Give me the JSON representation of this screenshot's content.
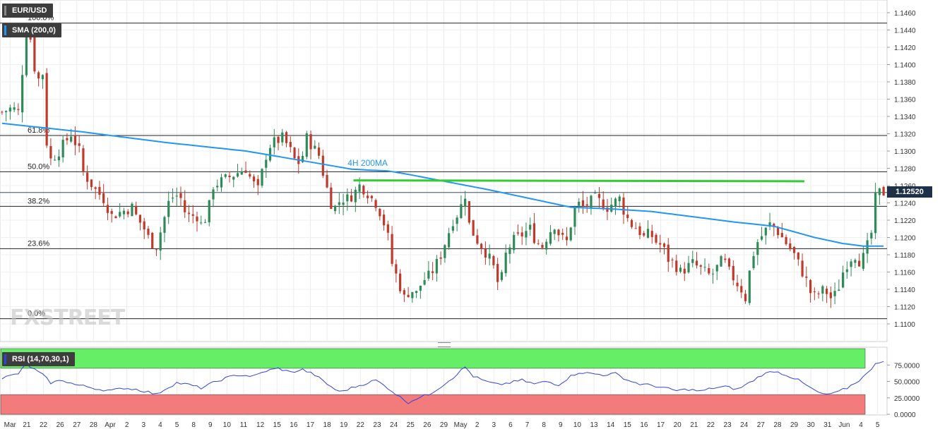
{
  "header": {
    "symbol": "EUR/USD",
    "sma_label": "SMA (200,0)",
    "rsi_label": "RSI (14,70,30,1)",
    "last_price": "1.12520",
    "logo": "FXSTREET"
  },
  "colors": {
    "up_candle": "#2e8b57",
    "down_candle": "#c0392b",
    "sma_line": "#2196f3",
    "resistance_line": "#33cc33",
    "rsi_line": "#3344dd",
    "rsi_overbought": "#66ee66",
    "rsi_oversold": "#f47b7b",
    "price_tag_bg": "#1f3148"
  },
  "chart_data": [
    {
      "type": "candlestick",
      "timeframe": "4H",
      "x_ticks": [
        "Mar",
        "21",
        "22",
        "26",
        "27",
        "28",
        "Apr",
        "2",
        "3",
        "4",
        "5",
        "8",
        "9",
        "10",
        "11",
        "12",
        "15",
        "16",
        "17",
        "18",
        "19",
        "22",
        "23",
        "24",
        "25",
        "26",
        "29",
        "May",
        "2",
        "3",
        "6",
        "7",
        "8",
        "9",
        "10",
        "13",
        "14",
        "15",
        "16",
        "17",
        "20",
        "21",
        "22",
        "23",
        "24",
        "27",
        "28",
        "29",
        "30",
        "31",
        "Jun",
        "4",
        "5"
      ],
      "y_ticks": [
        "1.1460",
        "1.1440",
        "1.1420",
        "1.1400",
        "1.1380",
        "1.1360",
        "1.1340",
        "1.1320",
        "1.1300",
        "1.1280",
        "1.1260",
        "1.1240",
        "1.1220",
        "1.1200",
        "1.1180",
        "1.1160",
        "1.1140",
        "1.1120",
        "1.1100"
      ],
      "ylim": [
        1.109,
        1.147
      ],
      "last_price": 1.1252,
      "fibonacci_levels": [
        {
          "label": "100.0%",
          "value": 1.1448
        },
        {
          "label": "61.8%",
          "value": 1.1318
        },
        {
          "label": "50.0%",
          "value": 1.1276
        },
        {
          "label": "38.2%",
          "value": 1.1236
        },
        {
          "label": "23.6%",
          "value": 1.1187
        },
        {
          "label": "0.0%",
          "value": 1.1106
        }
      ],
      "annotations": [
        {
          "text": "4H 200MA"
        }
      ],
      "resistance_line": {
        "start_x": 86.5,
        "end_x": 197.5,
        "start_y": 1.1266,
        "end_y": 1.1265
      },
      "close_path": [
        [
          0,
          1.1345
        ],
        [
          2.5,
          1.135
        ],
        [
          4,
          1.1345
        ],
        [
          6,
          1.144
        ],
        [
          7,
          1.143
        ],
        [
          8.5,
          1.138
        ],
        [
          10,
          1.139
        ],
        [
          11,
          1.131
        ],
        [
          12,
          1.129
        ],
        [
          14,
          1.13
        ],
        [
          15.5,
          1.131
        ],
        [
          17,
          1.132
        ],
        [
          19,
          1.13
        ],
        [
          20,
          1.1275
        ],
        [
          21.5,
          1.1265
        ],
        [
          23,
          1.1255
        ],
        [
          25,
          1.1245
        ],
        [
          27,
          1.1225
        ],
        [
          29.5,
          1.123
        ],
        [
          32,
          1.1235
        ],
        [
          33,
          1.1225
        ],
        [
          35,
          1.121
        ],
        [
          36.5,
          1.1195
        ],
        [
          38,
          1.119
        ],
        [
          39.5,
          1.1215
        ],
        [
          41,
          1.124
        ],
        [
          42.5,
          1.125
        ],
        [
          44,
          1.1245
        ],
        [
          45,
          1.123
        ],
        [
          46,
          1.1225
        ],
        [
          48,
          1.1225
        ],
        [
          49,
          1.1215
        ],
        [
          50.5,
          1.1225
        ],
        [
          52,
          1.126
        ],
        [
          54,
          1.1265
        ],
        [
          56,
          1.127
        ],
        [
          58,
          1.1275
        ],
        [
          60,
          1.128
        ],
        [
          61.5,
          1.1265
        ],
        [
          63,
          1.1255
        ],
        [
          64.5,
          1.1285
        ],
        [
          65.5,
          1.1305
        ],
        [
          67,
          1.131
        ],
        [
          69,
          1.1315
        ],
        [
          70.5,
          1.1305
        ],
        [
          72,
          1.129
        ],
        [
          73.5,
          1.1285
        ],
        [
          75,
          1.1315
        ],
        [
          76.5,
          1.1305
        ],
        [
          78,
          1.1295
        ],
        [
          79.5,
          1.1265
        ],
        [
          81,
          1.124
        ],
        [
          82,
          1.1235
        ],
        [
          83.5,
          1.1245
        ],
        [
          85,
          1.1245
        ],
        [
          86.5,
          1.125
        ],
        [
          88,
          1.126
        ],
        [
          89.5,
          1.1255
        ],
        [
          91,
          1.1245
        ],
        [
          92,
          1.124
        ],
        [
          93.5,
          1.1225
        ],
        [
          95,
          1.12
        ],
        [
          96,
          1.117
        ],
        [
          97.5,
          1.115
        ],
        [
          99,
          1.113
        ],
        [
          100.5,
          1.114
        ],
        [
          102,
          1.1135
        ],
        [
          103.5,
          1.115
        ],
        [
          105,
          1.1155
        ],
        [
          106.5,
          1.1165
        ],
        [
          108,
          1.118
        ],
        [
          109.5,
          1.12
        ],
        [
          111,
          1.122
        ],
        [
          112.5,
          1.123
        ],
        [
          114,
          1.125
        ],
        [
          115,
          1.1215
        ],
        [
          116.5,
          1.12
        ],
        [
          118,
          1.119
        ],
        [
          119.5,
          1.118
        ],
        [
          121,
          1.1165
        ],
        [
          122.5,
          1.114
        ],
        [
          124,
          1.118
        ],
        [
          125.5,
          1.1195
        ],
        [
          127,
          1.12
        ],
        [
          128.5,
          1.1205
        ],
        [
          130,
          1.121
        ],
        [
          131.5,
          1.1195
        ],
        [
          133,
          1.119
        ],
        [
          134.5,
          1.1205
        ],
        [
          136,
          1.1215
        ],
        [
          137.5,
          1.12
        ],
        [
          139,
          1.1195
        ],
        [
          140.5,
          1.1225
        ],
        [
          141.5,
          1.124
        ],
        [
          143,
          1.1235
        ],
        [
          144.5,
          1.124
        ],
        [
          146,
          1.1245
        ],
        [
          147.5,
          1.124
        ],
        [
          149,
          1.1235
        ],
        [
          150.5,
          1.124
        ],
        [
          152,
          1.1245
        ],
        [
          153.5,
          1.1225
        ],
        [
          155,
          1.1215
        ],
        [
          156.5,
          1.121
        ],
        [
          158,
          1.12
        ],
        [
          159.5,
          1.1205
        ],
        [
          161,
          1.1195
        ],
        [
          162.5,
          1.119
        ],
        [
          164,
          1.1175
        ],
        [
          165.5,
          1.117
        ],
        [
          167,
          1.116
        ],
        [
          168.5,
          1.1165
        ],
        [
          170,
          1.117
        ],
        [
          171.5,
          1.1165
        ],
        [
          173,
          1.116
        ],
        [
          174.5,
          1.1155
        ],
        [
          176,
          1.1165
        ],
        [
          177.5,
          1.1175
        ],
        [
          179,
          1.116
        ],
        [
          180.5,
          1.115
        ],
        [
          182,
          1.114
        ],
        [
          183,
          1.113
        ],
        [
          184.5,
          1.1175
        ],
        [
          186,
          1.1195
        ],
        [
          187.5,
          1.1205
        ],
        [
          189,
          1.1215
        ],
        [
          190.5,
          1.121
        ],
        [
          192,
          1.12
        ],
        [
          193.5,
          1.119
        ],
        [
          195,
          1.118
        ],
        [
          196.5,
          1.1165
        ],
        [
          198,
          1.115
        ],
        [
          199.5,
          1.113
        ],
        [
          201,
          1.1135
        ],
        [
          202.5,
          1.114
        ],
        [
          204,
          1.113
        ],
        [
          205.5,
          1.1135
        ],
        [
          207,
          1.116
        ],
        [
          208.5,
          1.1175
        ],
        [
          210,
          1.118
        ],
        [
          211.5,
          1.117
        ],
        [
          213,
          1.119
        ],
        [
          214,
          1.1205
        ],
        [
          215,
          1.1245
        ],
        [
          216,
          1.1252
        ]
      ],
      "sma_200": [
        [
          0,
          1.1332
        ],
        [
          20,
          1.1322
        ],
        [
          40,
          1.131
        ],
        [
          60,
          1.13
        ],
        [
          75,
          1.1288
        ],
        [
          86,
          1.1279
        ],
        [
          90,
          1.1278
        ],
        [
          95,
          1.1277
        ],
        [
          100,
          1.1273
        ],
        [
          110,
          1.1264
        ],
        [
          120,
          1.1255
        ],
        [
          130,
          1.1245
        ],
        [
          140,
          1.1235
        ],
        [
          150,
          1.1233
        ],
        [
          160,
          1.123
        ],
        [
          170,
          1.1224
        ],
        [
          180,
          1.1218
        ],
        [
          190,
          1.1213
        ],
        [
          200,
          1.12
        ],
        [
          207,
          1.1193
        ],
        [
          212,
          1.119
        ],
        [
          216,
          1.119
        ]
      ]
    },
    {
      "type": "line",
      "name": "RSI (14,70,30,1)",
      "y_ticks": [
        "75.0000",
        "50.0000",
        "25.0000",
        "0.0000"
      ],
      "ylim": [
        0,
        100
      ],
      "overbought": 70,
      "oversold": 30,
      "values": [
        [
          0,
          55
        ],
        [
          4,
          62
        ],
        [
          6,
          76
        ],
        [
          8,
          68
        ],
        [
          10,
          60
        ],
        [
          12,
          48
        ],
        [
          15,
          52
        ],
        [
          18,
          45
        ],
        [
          21,
          42
        ],
        [
          24,
          38
        ],
        [
          27,
          36
        ],
        [
          30,
          40
        ],
        [
          33,
          38
        ],
        [
          36,
          34
        ],
        [
          38,
          30
        ],
        [
          40,
          38
        ],
        [
          43,
          48
        ],
        [
          46,
          45
        ],
        [
          49,
          40
        ],
        [
          52,
          48
        ],
        [
          55,
          55
        ],
        [
          58,
          60
        ],
        [
          62,
          58
        ],
        [
          65,
          66
        ],
        [
          68,
          70
        ],
        [
          71,
          64
        ],
        [
          74,
          68
        ],
        [
          77,
          60
        ],
        [
          80,
          46
        ],
        [
          83,
          34
        ],
        [
          86,
          40
        ],
        [
          89,
          46
        ],
        [
          92,
          52
        ],
        [
          95,
          40
        ],
        [
          98,
          26
        ],
        [
          100,
          18
        ],
        [
          102,
          24
        ],
        [
          105,
          30
        ],
        [
          108,
          42
        ],
        [
          111,
          56
        ],
        [
          114,
          72
        ],
        [
          116,
          58
        ],
        [
          119,
          50
        ],
        [
          122,
          45
        ],
        [
          125,
          48
        ],
        [
          128,
          52
        ],
        [
          131,
          46
        ],
        [
          134,
          50
        ],
        [
          137,
          45
        ],
        [
          140,
          58
        ],
        [
          142,
          64
        ],
        [
          145,
          62
        ],
        [
          148,
          60
        ],
        [
          151,
          62
        ],
        [
          154,
          52
        ],
        [
          157,
          46
        ],
        [
          160,
          44
        ],
        [
          163,
          40
        ],
        [
          166,
          36
        ],
        [
          169,
          38
        ],
        [
          172,
          35
        ],
        [
          175,
          40
        ],
        [
          178,
          42
        ],
        [
          181,
          38
        ],
        [
          184,
          48
        ],
        [
          187,
          60
        ],
        [
          190,
          66
        ],
        [
          193,
          60
        ],
        [
          196,
          52
        ],
        [
          199,
          40
        ],
        [
          202,
          30
        ],
        [
          205,
          32
        ],
        [
          208,
          40
        ],
        [
          211,
          52
        ],
        [
          213,
          62
        ],
        [
          215,
          78
        ],
        [
          216,
          80
        ]
      ]
    }
  ]
}
